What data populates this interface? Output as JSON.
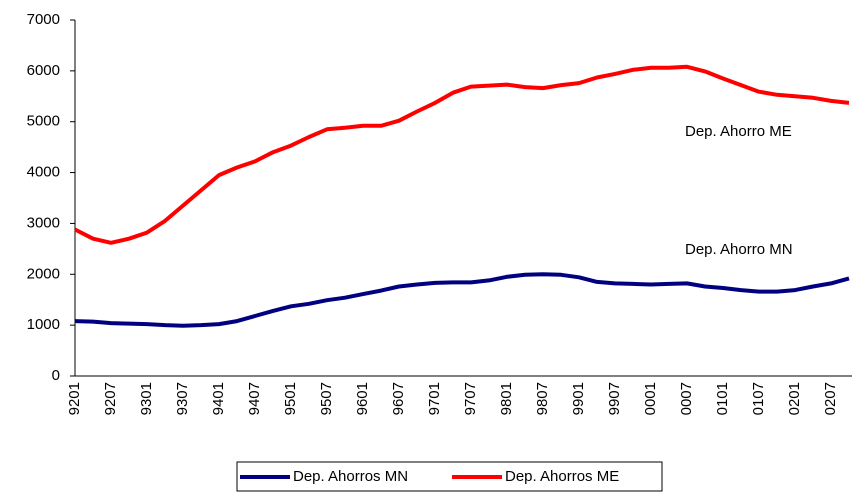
{
  "chart_data": {
    "type": "line",
    "categories": [
      "9201",
      null,
      "9207",
      null,
      "9301",
      null,
      "9307",
      null,
      "9401",
      null,
      "9407",
      null,
      "9501",
      null,
      "9507",
      null,
      "9601",
      null,
      "9607",
      null,
      "9701",
      null,
      "9707",
      null,
      "9801",
      null,
      "9807",
      null,
      "9901",
      null,
      "9907",
      null,
      "0001",
      null,
      "0007",
      null,
      "0101",
      null,
      "0107",
      null,
      "0201",
      null,
      "0207",
      null
    ],
    "series": [
      {
        "name": "Dep. Ahorros MN",
        "color": "#000080",
        "values": [
          1080,
          1070,
          1040,
          1030,
          1020,
          1000,
          990,
          1000,
          1020,
          1080,
          1180,
          1280,
          1370,
          1420,
          1490,
          1540,
          1610,
          1680,
          1760,
          1800,
          1830,
          1840,
          1840,
          1880,
          1950,
          1990,
          2000,
          1990,
          1940,
          1850,
          1820,
          1810,
          1800,
          1810,
          1820,
          1760,
          1730,
          1690,
          1660,
          1660,
          1690,
          1760,
          1820,
          1920
        ]
      },
      {
        "name": "Dep. Ahorros ME",
        "color": "#ff0000",
        "values": [
          2880,
          2700,
          2620,
          2700,
          2820,
          3050,
          3350,
          3650,
          3950,
          4100,
          4220,
          4400,
          4530,
          4700,
          4850,
          4880,
          4920,
          4920,
          5020,
          5200,
          5370,
          5570,
          5690,
          5710,
          5730,
          5680,
          5660,
          5720,
          5760,
          5870,
          5940,
          6020,
          6060,
          6060,
          6080,
          5990,
          5850,
          5720,
          5590,
          5530,
          5500,
          5470,
          5410,
          5370
        ]
      }
    ],
    "annotations": [
      "Dep. Ahorro ME",
      "Dep. Ahorro MN"
    ],
    "ylim": [
      0,
      7000
    ],
    "yticks": [
      0,
      1000,
      2000,
      3000,
      4000,
      5000,
      6000,
      7000
    ],
    "grid": false
  }
}
